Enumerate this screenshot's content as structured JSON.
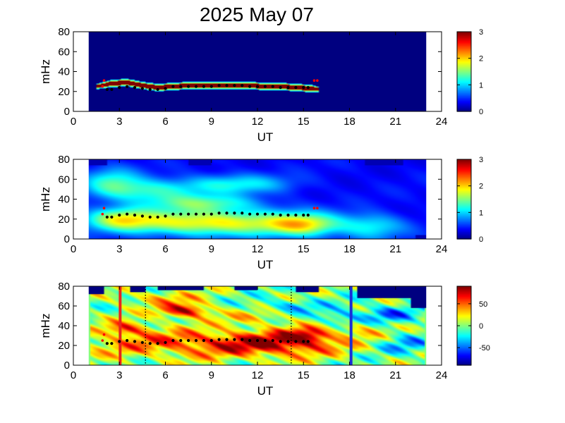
{
  "title": "2025 May 07",
  "colors": {
    "background_dark_blue": "#00007f",
    "ridge_dark_red": "#7f0000",
    "dots_black": "#000000",
    "dots_red": "#ff0000",
    "marker_red": "#e8241c",
    "marker_blue": "#1a2fd6",
    "edge_green": "#7fff7f"
  },
  "chart_data": [
    {
      "type": "heatmap",
      "panel": "top",
      "xlabel": "UT",
      "ylabel": "mHz",
      "xlim": [
        0,
        24
      ],
      "ylim": [
        0,
        80
      ],
      "x_ticks": [
        "0",
        "3",
        "6",
        "9",
        "12",
        "15",
        "18",
        "21",
        "24"
      ],
      "y_ticks": [
        "0",
        "20",
        "40",
        "60",
        "80"
      ],
      "data_x_range": [
        1,
        23
      ],
      "colorbar": {
        "range": [
          0,
          3
        ],
        "ticks": [
          "0",
          "1",
          "2",
          "3"
        ],
        "colormap": "jet"
      },
      "ridge_band": {
        "x": [
          1.5,
          2.5,
          3.5,
          4.5,
          5.5,
          6.5,
          7.5,
          8.5,
          9.5,
          10.5,
          11.5,
          12.5,
          13.5,
          14.5,
          15.5,
          16.0
        ],
        "y_center": [
          25,
          28,
          29,
          26,
          24,
          25,
          26,
          26,
          26,
          26,
          26,
          25,
          25,
          24,
          23,
          22
        ],
        "half_width": [
          2,
          3,
          3,
          3,
          3,
          3,
          3,
          3,
          3,
          3,
          3,
          3,
          3,
          3,
          3,
          2
        ],
        "value": 3
      },
      "black_dots": {
        "x": [
          2.2,
          2.5,
          3.0,
          3.5,
          4.0,
          4.5,
          5.0,
          5.5,
          6.0,
          6.5,
          7.0,
          7.5,
          8.0,
          8.5,
          9.0,
          9.5,
          10.0,
          10.5,
          11.0,
          11.5,
          12.0,
          12.5,
          13.0,
          13.5,
          14.0,
          14.5,
          15.0,
          15.3
        ],
        "y": [
          22,
          22,
          24,
          25,
          24,
          23,
          22,
          22,
          23,
          25,
          25,
          25,
          25,
          25,
          25,
          26,
          26,
          26,
          26,
          25,
          25,
          25,
          25,
          24,
          24,
          24,
          24,
          24
        ]
      },
      "red_dots": {
        "x": [
          1.9,
          2.0,
          15.7,
          15.9
        ],
        "y": [
          25,
          31,
          31,
          31
        ]
      }
    },
    {
      "type": "heatmap",
      "panel": "middle",
      "xlabel": "UT",
      "ylabel": "mHz",
      "xlim": [
        0,
        24
      ],
      "ylim": [
        0,
        80
      ],
      "x_ticks": [
        "0",
        "3",
        "6",
        "9",
        "12",
        "15",
        "18",
        "21",
        "24"
      ],
      "y_ticks": [
        "0",
        "20",
        "40",
        "60",
        "80"
      ],
      "data_x_range": [
        1,
        23
      ],
      "colorbar": {
        "range": [
          0,
          3
        ],
        "ticks": [
          "0",
          "1",
          "2",
          "3"
        ],
        "colormap": "jet"
      },
      "blobs": [
        {
          "x": 3.0,
          "y": 20,
          "sx": 1.6,
          "sy": 8,
          "v": 1.1
        },
        {
          "x": 7.0,
          "y": 17,
          "sx": 3.0,
          "sy": 9,
          "v": 1.05
        },
        {
          "x": 12.0,
          "y": 16,
          "sx": 3.5,
          "sy": 9,
          "v": 1.0
        },
        {
          "x": 15.0,
          "y": 14,
          "sx": 1.5,
          "sy": 8,
          "v": 1.0
        },
        {
          "x": 5.0,
          "y": 48,
          "sx": 2.2,
          "sy": 8,
          "v": 0.8
        },
        {
          "x": 10.5,
          "y": 55,
          "sx": 2.5,
          "sy": 7,
          "v": 0.75
        },
        {
          "x": 2.5,
          "y": 58,
          "sx": 1.3,
          "sy": 10,
          "v": 0.75
        },
        {
          "x": 19.5,
          "y": 12,
          "sx": 1.5,
          "sy": 9,
          "v": 0.7
        },
        {
          "x": 8.5,
          "y": 36,
          "sx": 2.5,
          "sy": 6,
          "v": 0.85
        }
      ],
      "black_dots": {
        "x": [
          2.2,
          2.5,
          3.0,
          3.5,
          4.0,
          4.5,
          5.0,
          5.5,
          6.0,
          6.5,
          7.0,
          7.5,
          8.0,
          8.5,
          9.0,
          9.5,
          10.0,
          10.5,
          11.0,
          11.5,
          12.0,
          12.5,
          13.0,
          13.5,
          14.0,
          14.5,
          15.0,
          15.3
        ],
        "y": [
          22,
          22,
          24,
          25,
          24,
          23,
          22,
          22,
          23,
          25,
          25,
          25,
          25,
          25,
          25,
          26,
          26,
          26,
          26,
          25,
          25,
          25,
          25,
          24,
          24,
          24,
          24,
          24
        ]
      },
      "red_dots": {
        "x": [
          1.9,
          2.0,
          15.7,
          15.9
        ],
        "y": [
          25,
          31,
          31,
          31
        ]
      }
    },
    {
      "type": "heatmap",
      "panel": "bottom",
      "xlabel": "UT",
      "ylabel": "mHz",
      "xlim": [
        0,
        24
      ],
      "ylim": [
        0,
        80
      ],
      "x_ticks": [
        "0",
        "3",
        "6",
        "9",
        "12",
        "15",
        "18",
        "21",
        "24"
      ],
      "y_ticks": [
        "0",
        "20",
        "40",
        "60",
        "80"
      ],
      "data_x_range": [
        1,
        23
      ],
      "colorbar": {
        "range": [
          -90,
          90
        ],
        "ticks": [
          "50",
          "0",
          "-50"
        ],
        "tick_values": [
          50,
          0,
          -50
        ],
        "colormap": "jet"
      },
      "blobs": [
        {
          "x": 8.5,
          "y": 22,
          "sx": 5.5,
          "sy": 10,
          "v": 55
        },
        {
          "x": 13.5,
          "y": 22,
          "sx": 2.5,
          "sy": 9,
          "v": 45
        },
        {
          "x": 7.3,
          "y": 55,
          "sx": 1.2,
          "sy": 5,
          "v": 80
        },
        {
          "x": 3.5,
          "y": 37,
          "sx": 1.0,
          "sy": 5,
          "v": 55
        },
        {
          "x": 15.3,
          "y": 30,
          "sx": 1.0,
          "sy": 6,
          "v": 50
        },
        {
          "x": 5.5,
          "y": 68,
          "sx": 2.0,
          "sy": 5,
          "v": 30
        },
        {
          "x": 18.7,
          "y": 35,
          "sx": 1.2,
          "sy": 6,
          "v": 30
        },
        {
          "x": 20.5,
          "y": 52,
          "sx": 1.4,
          "sy": 6,
          "v": -45
        },
        {
          "x": 17.3,
          "y": 48,
          "sx": 1.0,
          "sy": 6,
          "v": -35
        },
        {
          "x": 14.0,
          "y": 60,
          "sx": 1.5,
          "sy": 5,
          "v": -30
        },
        {
          "x": 21.5,
          "y": 22,
          "sx": 1.4,
          "sy": 8,
          "v": -35
        },
        {
          "x": 12.0,
          "y": 48,
          "sx": 1.5,
          "sy": 5,
          "v": 25
        }
      ],
      "dark_gaps": [
        {
          "x0": 1.0,
          "x1": 2.0,
          "y0": 72,
          "y1": 80
        },
        {
          "x0": 3.7,
          "x1": 4.7,
          "y0": 74,
          "y1": 80
        },
        {
          "x0": 5.5,
          "x1": 8.5,
          "y0": 76,
          "y1": 80
        },
        {
          "x0": 10.5,
          "x1": 12.0,
          "y0": 76,
          "y1": 80
        },
        {
          "x0": 14.5,
          "x1": 16.0,
          "y0": 74,
          "y1": 80
        },
        {
          "x0": 18.5,
          "x1": 23.0,
          "y0": 68,
          "y1": 80
        },
        {
          "x0": 22.0,
          "x1": 23.0,
          "y0": 58,
          "y1": 80
        }
      ],
      "vertical_lines": [
        {
          "x": 3.05,
          "style": "solid",
          "color": "#e8241c"
        },
        {
          "x": 18.1,
          "style": "solid",
          "color": "#1a2fd6"
        },
        {
          "x": 4.7,
          "style": "dotted",
          "color": "#000000"
        },
        {
          "x": 14.2,
          "style": "dotted",
          "color": "#000000"
        }
      ],
      "black_dots": {
        "x": [
          2.2,
          2.5,
          3.0,
          3.5,
          4.0,
          4.5,
          5.0,
          5.5,
          6.0,
          6.5,
          7.0,
          7.5,
          8.0,
          8.5,
          9.0,
          9.5,
          10.0,
          10.5,
          11.0,
          11.5,
          12.0,
          12.5,
          13.0,
          13.5,
          14.0,
          14.5,
          15.0,
          15.3
        ],
        "y": [
          22,
          22,
          24,
          25,
          24,
          23,
          22,
          22,
          23,
          25,
          25,
          25,
          25,
          25,
          25,
          26,
          26,
          26,
          26,
          25,
          25,
          25,
          25,
          24,
          24,
          24,
          24,
          24
        ]
      },
      "red_dots": {
        "x": [
          1.9,
          2.0
        ],
        "y": [
          25,
          31
        ]
      }
    }
  ]
}
